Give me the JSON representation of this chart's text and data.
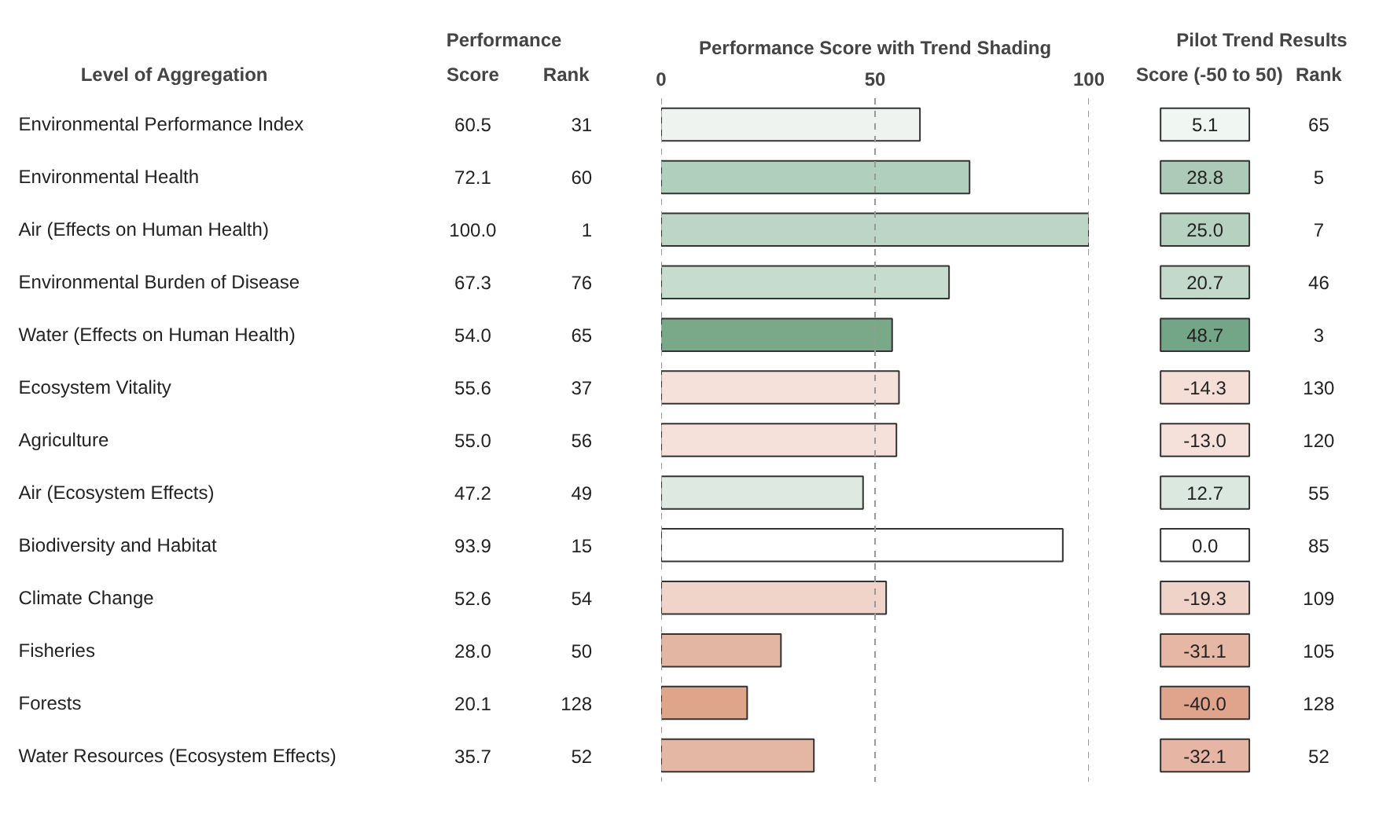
{
  "chart_data": [
    {
      "type": "bar",
      "orientation": "horizontal",
      "title": "Performance Score with Trend Shading",
      "ylabel": "Level of Aggregation",
      "categories": [
        "Environmental Performance Index",
        "Environmental Health",
        "Air (Effects on Human Health)",
        "Environmental Burden of Disease",
        "Water (Effects on Human Health)",
        "Ecosystem Vitality",
        "Agriculture",
        "Air (Ecosystem Effects)",
        "Biodiversity and Habitat",
        "Climate Change",
        "Fisheries",
        "Forests",
        "Water Resources (Ecosystem Effects)"
      ],
      "values": [
        60.5,
        72.1,
        100.0,
        67.3,
        54.0,
        55.6,
        55.0,
        47.2,
        93.9,
        52.6,
        28.0,
        20.1,
        35.7
      ],
      "colors": [
        "#eef3ef",
        "#b1cfbd",
        "#bcd5c6",
        "#c6dccf",
        "#7aa98a",
        "#f5e1d9",
        "#f5e1d9",
        "#dde9e1",
        "#ffffff",
        "#f0d4ca",
        "#e3b5a3",
        "#dfa58b",
        "#e4b6a4"
      ],
      "value_labels": [
        "60.5",
        "72.1",
        "100.0",
        "67.3",
        "54.0",
        "55.6",
        "55.0",
        "47.2",
        "93.9",
        "52.6",
        "28.0",
        "20.1",
        "35.7"
      ],
      "x2lim": [
        0,
        100
      ],
      "x2ticks": [
        0,
        50,
        100
      ],
      "grid": "x",
      "annotations": [
        "Performance",
        "Score",
        "Rank",
        "31",
        "60",
        "1",
        "76",
        "65",
        "37",
        "56",
        "49",
        "15",
        "54",
        "50",
        "128",
        "52"
      ]
    },
    {
      "type": "heatmap",
      "title": "Pilot Trend Results",
      "categories": [
        "Score (-50 to 50)",
        "Rank"
      ],
      "y_categories": [
        null,
        null,
        null,
        null,
        null,
        null,
        null,
        null,
        null,
        null,
        null,
        null,
        null
      ],
      "cells": [
        [
          5.1,
          null
        ],
        [
          28.8,
          null
        ],
        [
          25.0,
          null
        ],
        [
          20.7,
          null
        ],
        [
          48.7,
          null
        ],
        [
          -14.3,
          null
        ],
        [
          -13.0,
          null
        ],
        [
          12.7,
          null
        ],
        [
          0.0,
          null
        ],
        [
          -19.3,
          null
        ],
        [
          -31.1,
          null
        ],
        [
          -40.0,
          null
        ],
        [
          -32.1,
          null
        ]
      ],
      "cell_labels": [
        [
          "5.1",
          "65"
        ],
        [
          "28.8",
          "5"
        ],
        [
          "25.0",
          "7"
        ],
        [
          "20.7",
          "46"
        ],
        [
          "48.7",
          "3"
        ],
        [
          "-14.3",
          "130"
        ],
        [
          "-13.0",
          "120"
        ],
        [
          "12.7",
          "55"
        ],
        [
          "0.0",
          "85"
        ],
        [
          "-19.3",
          "109"
        ],
        [
          "-31.1",
          "105"
        ],
        [
          "-40.0",
          "128"
        ],
        [
          "-32.1",
          "52"
        ]
      ],
      "data_labels": false
    }
  ]
}
